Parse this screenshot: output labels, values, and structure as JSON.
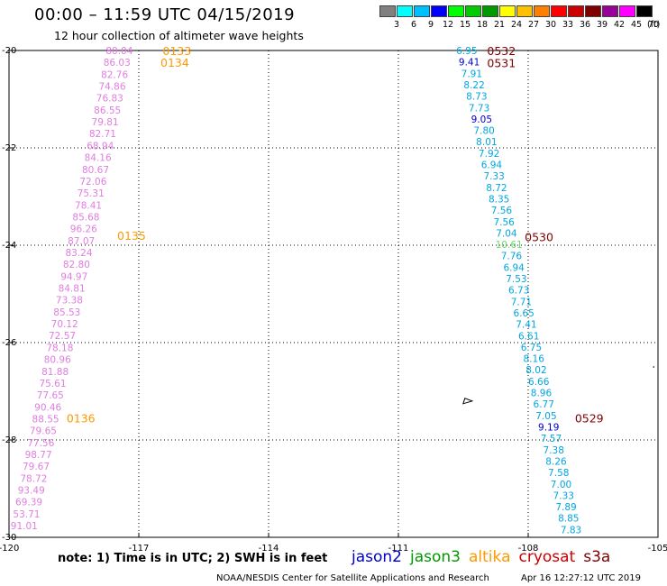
{
  "header": {
    "title": "00:00 – 11:59 UTC 04/15/2019",
    "subtitle": "12 hour collection of altimeter wave heights"
  },
  "colorbar": {
    "unit_label": "(ft)",
    "bins": [
      {
        "label": "3",
        "color": "#808080"
      },
      {
        "label": "6",
        "color": "#00ffff"
      },
      {
        "label": "9",
        "color": "#00bfff"
      },
      {
        "label": "12",
        "color": "#0000ff"
      },
      {
        "label": "15",
        "color": "#00ff00"
      },
      {
        "label": "18",
        "color": "#00cc00"
      },
      {
        "label": "21",
        "color": "#009900"
      },
      {
        "label": "24",
        "color": "#ffff00"
      },
      {
        "label": "27",
        "color": "#ffc000"
      },
      {
        "label": "30",
        "color": "#ff8000"
      },
      {
        "label": "33",
        "color": "#ff0000"
      },
      {
        "label": "36",
        "color": "#cc0000"
      },
      {
        "label": "39",
        "color": "#800000"
      },
      {
        "label": "42",
        "color": "#990099"
      },
      {
        "label": "45",
        "color": "#ff00ff"
      },
      {
        "label": "70",
        "color": "#000000"
      }
    ]
  },
  "footer": {
    "note": "note: 1) Time is in UTC; 2) SWH is in feet",
    "legend": [
      {
        "name": "jason2",
        "color": "#0000cc"
      },
      {
        "name": "jason3",
        "color": "#009900"
      },
      {
        "name": "altika",
        "color": "#ff9900"
      },
      {
        "name": "cryosat",
        "color": "#cc0000"
      },
      {
        "name": "s3a",
        "color": "#800000"
      }
    ],
    "credit": "NOAA/NESDIS Center for Satellite Applications and Research",
    "date": "Apr 16 12:27:12 UTC 2019"
  },
  "chart_data": {
    "type": "scatter",
    "xlim": [
      -120,
      -105
    ],
    "ylim": [
      -30,
      -20
    ],
    "xticks": [
      -120,
      -117,
      -114,
      -111,
      -108,
      -105
    ],
    "yticks": [
      -30,
      -28,
      -26,
      -24,
      -22,
      -20
    ],
    "xtick_labels": [
      "-120",
      "-117",
      "-114",
      "-111",
      "-108",
      "-105"
    ],
    "ytick_labels": [
      "-30",
      "-28",
      "-26",
      "-24",
      "-22",
      "-20"
    ],
    "grid": true,
    "tracks": [
      {
        "satellite": "altika",
        "color": "#e07de0",
        "label_color": "#ff9900",
        "values": [
          "80.04",
          "86.03",
          "82.76",
          "74.86",
          "76.83",
          "86.55",
          "79.81",
          "82.71",
          "68.94",
          "84.16",
          "80.67",
          "72.06",
          "75.31",
          "78.41",
          "85.68",
          "96.26",
          "87.07",
          "83.24",
          "82.80",
          "94.97",
          "84.81",
          "73.38",
          "85.53",
          "70.12",
          "72.57",
          "78.18",
          "80.96",
          "81.88",
          "75.61",
          "77.65",
          "90.46",
          "88.55",
          "79.65",
          "77.56",
          "98.77",
          "79.67",
          "78.72",
          "93.49",
          "69.39",
          "53.71",
          "91.01"
        ],
        "lat_start": -20.0,
        "lat_end": -29.76,
        "lon_start": -117.45,
        "lon_end": -119.65,
        "time_labels": [
          {
            "text": "0133",
            "lat": -20.0,
            "lon": -116.45
          },
          {
            "text": "0134",
            "lat": -20.24,
            "lon": -116.5
          },
          {
            "text": "0135",
            "lat": -23.8,
            "lon": -117.5
          },
          {
            "text": "0136",
            "lat": -27.55,
            "lon": -118.67
          }
        ]
      },
      {
        "satellite": "s3a",
        "color": "#00a6e0",
        "label_color": "#800000",
        "values": [
          "6.95",
          "9.41",
          "7.91",
          "8.22",
          "8.73",
          "7.73",
          "9.05",
          "7.80",
          "8.01",
          "7.92",
          "6.94",
          "7.33",
          "8.72",
          "8.35",
          "7.56",
          "7.56",
          "7.04",
          "10.61",
          "7.76",
          "6.94",
          "7.53",
          "6.73",
          "7.71",
          "6.65",
          "7.41",
          "6.61",
          "6.75",
          "8.16",
          "8.02",
          "6.66",
          "8.96",
          "6.77",
          "7.05",
          "9.19",
          "7.57",
          "7.38",
          "8.26",
          "7.58",
          "7.00",
          "7.33",
          "7.89",
          "8.85",
          "7.83"
        ],
        "lat_start": -20.0,
        "lat_end": -29.84,
        "lon_start": -109.42,
        "lon_end": -107.01,
        "time_labels": [
          {
            "text": "0532",
            "lat": -20.0,
            "lon": -108.95
          },
          {
            "text": "0531",
            "lat": -20.25,
            "lon": -108.95
          },
          {
            "text": "0530",
            "lat": -23.82,
            "lon": -108.08
          },
          {
            "text": "0529",
            "lat": -27.55,
            "lon": -106.92
          }
        ]
      }
    ],
    "island": {
      "lat": -27.2,
      "lon": -109.4
    }
  }
}
